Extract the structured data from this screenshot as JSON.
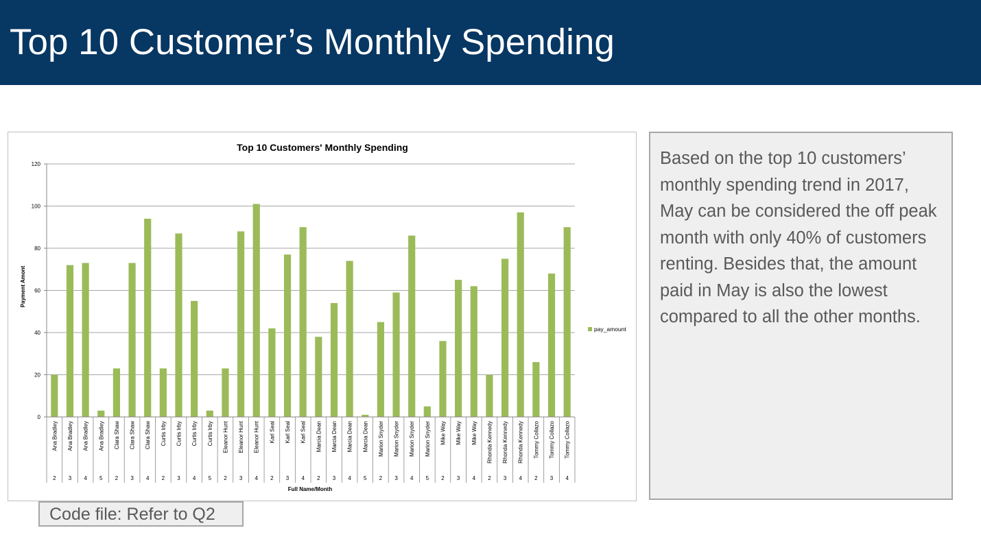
{
  "slide": {
    "title": "Top 10 Customer’s Monthly Spending"
  },
  "note": {
    "text": "Based on the top 10 customers’ monthly spending trend in 2017, May can be considered the off peak month with only 40% of customers renting. Besides that, the amount paid in May is also the lowest compared to all the other months."
  },
  "code_ref": {
    "text": "Code file: Refer to Q2"
  },
  "colors": {
    "banner": "#073763",
    "bar": "#9bbb59",
    "note_text": "#595959",
    "box_bg": "#efefef"
  },
  "chart_data": {
    "type": "bar",
    "title": "Top 10 Customers' Monthly Spending",
    "xlabel": "Full Name/Month",
    "ylabel": "Payment Amont",
    "ylim": [
      0,
      120
    ],
    "yticks": [
      0,
      20,
      40,
      60,
      80,
      100,
      120
    ],
    "grid": true,
    "legend_position": "right",
    "categories": [
      {
        "name": "Ana Bradley",
        "month": "2"
      },
      {
        "name": "Ana Bradley",
        "month": "3"
      },
      {
        "name": "Ana Bradley",
        "month": "4"
      },
      {
        "name": "Ana Bradley",
        "month": "5"
      },
      {
        "name": "Clara Shaw",
        "month": "2"
      },
      {
        "name": "Clara Shaw",
        "month": "3"
      },
      {
        "name": "Clara Shaw",
        "month": "4"
      },
      {
        "name": "Curtis Irby",
        "month": "2"
      },
      {
        "name": "Curtis Irby",
        "month": "3"
      },
      {
        "name": "Curtis Irby",
        "month": "4"
      },
      {
        "name": "Curtis Irby",
        "month": "5"
      },
      {
        "name": "Eleanor Hunt",
        "month": "2"
      },
      {
        "name": "Eleanor Hunt",
        "month": "3"
      },
      {
        "name": "Eleanor Hunt",
        "month": "4"
      },
      {
        "name": "Karl Seal",
        "month": "2"
      },
      {
        "name": "Karl Seal",
        "month": "3"
      },
      {
        "name": "Karl Seal",
        "month": "4"
      },
      {
        "name": "Marcia Dean",
        "month": "2"
      },
      {
        "name": "Marcia Dean",
        "month": "3"
      },
      {
        "name": "Marcia Dean",
        "month": "4"
      },
      {
        "name": "Marcia Dean",
        "month": "5"
      },
      {
        "name": "Marion Snyder",
        "month": "2"
      },
      {
        "name": "Marion Snyder",
        "month": "3"
      },
      {
        "name": "Marion Snyder",
        "month": "4"
      },
      {
        "name": "Marion Snyder",
        "month": "5"
      },
      {
        "name": "Mike Way",
        "month": "2"
      },
      {
        "name": "Mike Way",
        "month": "3"
      },
      {
        "name": "Mike Way",
        "month": "4"
      },
      {
        "name": "Rhonda Kennedy",
        "month": "2"
      },
      {
        "name": "Rhonda Kennedy",
        "month": "3"
      },
      {
        "name": "Rhonda Kennedy",
        "month": "4"
      },
      {
        "name": "Tommy Collazo",
        "month": "2"
      },
      {
        "name": "Tommy Collazo",
        "month": "3"
      },
      {
        "name": "Tommy Collazo",
        "month": "4"
      }
    ],
    "series": [
      {
        "name": "pay_amount",
        "color": "#9bbb59",
        "values": [
          20,
          72,
          73,
          3,
          23,
          73,
          94,
          23,
          87,
          55,
          3,
          23,
          88,
          101,
          42,
          77,
          90,
          38,
          54,
          74,
          1,
          45,
          59,
          86,
          5,
          36,
          65,
          62,
          20,
          75,
          97,
          26,
          68,
          90
        ]
      }
    ]
  }
}
